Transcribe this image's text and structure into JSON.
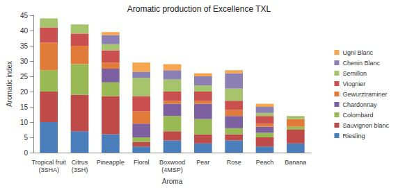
{
  "chart_data": {
    "type": "bar",
    "title": "Aromatic production of Excellence TXL",
    "x_label": "Aroma",
    "y_label": "Aromatic index",
    "categories": [
      "Tropical fruit (3SHA)",
      "Citrus (3SH)",
      "Pineapple",
      "Floral",
      "Boxwood (4MSP)",
      "Pear",
      "Rose",
      "Peach",
      "Banana"
    ],
    "stacked": true,
    "grid": false,
    "legend": "right",
    "ylim": [
      0,
      45
    ],
    "yticks": [
      0,
      5,
      10,
      15,
      20,
      25,
      30,
      35,
      40,
      45
    ],
    "series": [
      {
        "name": "Riesling",
        "color": "#4a7ebb",
        "values": [
          10,
          7,
          6,
          2,
          4,
          3,
          4,
          2,
          3
        ]
      },
      {
        "name": "Sauvignon blanc",
        "color": "#be4b48",
        "values": [
          10,
          12,
          12.5,
          1.5,
          3,
          3,
          2,
          3,
          4.5
        ]
      },
      {
        "name": "Colombard",
        "color": "#98b954",
        "values": [
          7,
          10,
          4.5,
          1.5,
          5,
          5,
          2,
          1.5,
          1
        ]
      },
      {
        "name": "Chardonnay",
        "color": "#7d60a0",
        "values": [
          0,
          0,
          4.5,
          4.5,
          4,
          5,
          4,
          2,
          0
        ]
      },
      {
        "name": "Gewurztraminer",
        "color": "#e07b39",
        "values": [
          9,
          6,
          2,
          4,
          1,
          1,
          2,
          1,
          2.5
        ]
      },
      {
        "name": "Viognier",
        "color": "#c9504f",
        "values": [
          5,
          4,
          4,
          5,
          3,
          3,
          3,
          2.5,
          0
        ]
      },
      {
        "name": "Semillon",
        "color": "#a6c46b",
        "values": [
          3,
          3,
          2,
          6,
          4,
          2,
          4,
          1,
          1
        ]
      },
      {
        "name": "Chenin Blanc",
        "color": "#8c7fb3",
        "values": [
          0,
          0,
          3,
          2,
          3,
          3,
          5,
          2,
          0
        ]
      },
      {
        "name": "Ugni Blanc",
        "color": "#f5a64f",
        "values": [
          0,
          0,
          1,
          3,
          2,
          1,
          1,
          1,
          0
        ]
      }
    ]
  }
}
